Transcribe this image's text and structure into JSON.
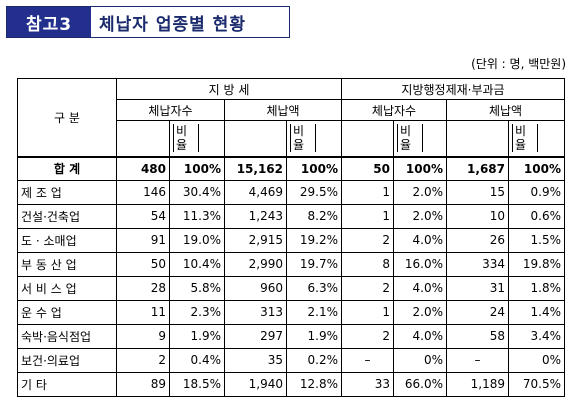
{
  "title": {
    "tag": "참고3",
    "text": "체납자 업종별 현황"
  },
  "unit_note": "(단위 : 명, 백만원)",
  "table": {
    "category_header": "구      분",
    "groups": [
      {
        "label": "지 방 세",
        "count_header": "체납자수",
        "amount_header": "체납액",
        "ratio_header_1": "비",
        "ratio_header_2": "율"
      },
      {
        "label": "지방행정제재·부과금",
        "count_header": "체납자수",
        "amount_header": "체납액",
        "ratio_header_1": "비",
        "ratio_header_2": "율"
      }
    ],
    "rows": [
      {
        "label": "합      계",
        "local_count": "480",
        "local_count_ratio": "100%",
        "local_amount": "15,162",
        "local_amount_ratio": "100%",
        "admin_count": "50",
        "admin_count_ratio": "100%",
        "admin_amount": "1,687",
        "admin_amount_ratio": "100%"
      },
      {
        "label": "제  조  업",
        "local_count": "146",
        "local_count_ratio": "30.4%",
        "local_amount": "4,469",
        "local_amount_ratio": "29.5%",
        "admin_count": "1",
        "admin_count_ratio": "2.0%",
        "admin_amount": "15",
        "admin_amount_ratio": "0.9%"
      },
      {
        "label": "건설·건축업",
        "local_count": "54",
        "local_count_ratio": "11.3%",
        "local_amount": "1,243",
        "local_amount_ratio": "8.2%",
        "admin_count": "1",
        "admin_count_ratio": "2.0%",
        "admin_amount": "10",
        "admin_amount_ratio": "0.6%"
      },
      {
        "label": "도 · 소매업",
        "local_count": "91",
        "local_count_ratio": "19.0%",
        "local_amount": "2,915",
        "local_amount_ratio": "19.2%",
        "admin_count": "2",
        "admin_count_ratio": "4.0%",
        "admin_amount": "26",
        "admin_amount_ratio": "1.5%"
      },
      {
        "label": "부 동 산 업",
        "local_count": "50",
        "local_count_ratio": "10.4%",
        "local_amount": "2,990",
        "local_amount_ratio": "19.7%",
        "admin_count": "8",
        "admin_count_ratio": "16.0%",
        "admin_amount": "334",
        "admin_amount_ratio": "19.8%"
      },
      {
        "label": "서 비 스 업",
        "local_count": "28",
        "local_count_ratio": "5.8%",
        "local_amount": "960",
        "local_amount_ratio": "6.3%",
        "admin_count": "2",
        "admin_count_ratio": "4.0%",
        "admin_amount": "31",
        "admin_amount_ratio": "1.8%"
      },
      {
        "label": "운  수  업",
        "local_count": "11",
        "local_count_ratio": "2.3%",
        "local_amount": "313",
        "local_amount_ratio": "2.1%",
        "admin_count": "1",
        "admin_count_ratio": "2.0%",
        "admin_amount": "24",
        "admin_amount_ratio": "1.4%"
      },
      {
        "label": "숙박·음식점업",
        "local_count": "9",
        "local_count_ratio": "1.9%",
        "local_amount": "297",
        "local_amount_ratio": "1.9%",
        "admin_count": "2",
        "admin_count_ratio": "4.0%",
        "admin_amount": "58",
        "admin_amount_ratio": "3.4%"
      },
      {
        "label": "보건·의료업",
        "local_count": "2",
        "local_count_ratio": "0.4%",
        "local_amount": "35",
        "local_amount_ratio": "0.2%",
        "admin_count": "–",
        "admin_count_ratio": "0%",
        "admin_amount": "–",
        "admin_amount_ratio": "0%"
      },
      {
        "label": "기      타",
        "local_count": "89",
        "local_count_ratio": "18.5%",
        "local_amount": "1,940",
        "local_amount_ratio": "12.8%",
        "admin_count": "33",
        "admin_count_ratio": "66.0%",
        "admin_amount": "1,189",
        "admin_amount_ratio": "70.5%"
      }
    ]
  }
}
